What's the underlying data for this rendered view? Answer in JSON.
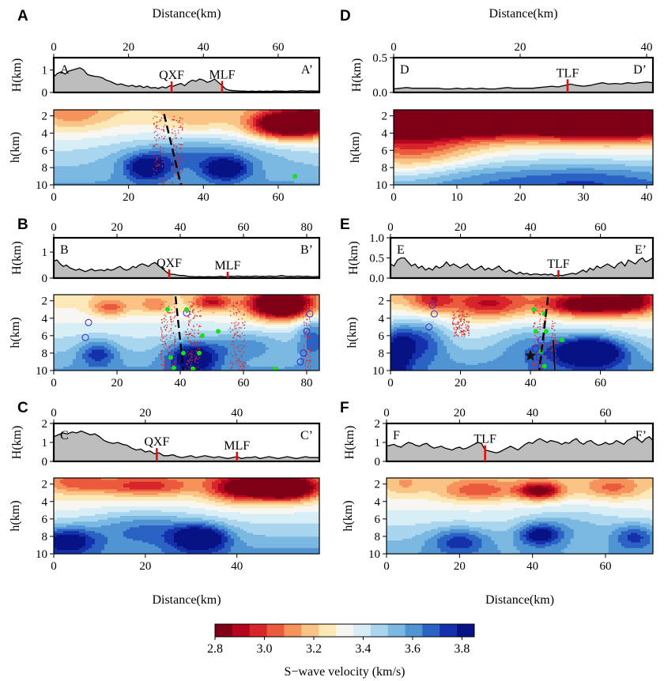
{
  "colors": {
    "scale": [
      "#7f0017",
      "#b4061e",
      "#d8242b",
      "#ec5a3d",
      "#f6925c",
      "#fbc487",
      "#fde8b8",
      "#f7f6f1",
      "#d8eef7",
      "#a9d6ee",
      "#7bb8e2",
      "#5094d4",
      "#2b63c4",
      "#1530ab",
      "#071285"
    ],
    "topo_fill": "#bdbdbd",
    "fault_mark": "#e01010",
    "quake": "#e02626",
    "event_green": "#18e018",
    "circle_blue": "#3228c8"
  },
  "labels": {
    "distance": "Distance(km)",
    "H_axis": "H(km)",
    "h_axis": "h(km)",
    "colorbar_title": "S−wave velocity (km/s)"
  },
  "colorbar": {
    "vmin": 2.8,
    "vmax": 3.85,
    "ticks": [
      "2.8",
      "3.0",
      "3.2",
      "3.4",
      "3.6",
      "3.8"
    ],
    "tick_values": [
      2.8,
      3.0,
      3.2,
      3.4,
      3.6,
      3.8
    ]
  },
  "panels": [
    {
      "letter": "A",
      "start": "A",
      "end": "A’",
      "xmax": 71,
      "top_ticks": [
        "0",
        "20",
        "40",
        "60"
      ],
      "top_tick_values": [
        0,
        20,
        40,
        60
      ],
      "bottom_ticks": [
        "0",
        "20",
        "40",
        "60"
      ],
      "bottom_tick_values": [
        0,
        20,
        40,
        60
      ],
      "H_ticks": [
        "0",
        "1"
      ],
      "H_tick_values": [
        0,
        1
      ],
      "H_max": 1.55,
      "faults": [
        {
          "name": "QXF",
          "x": 31.5
        },
        {
          "name": "MLF",
          "x": 45
        }
      ],
      "distance_top": true,
      "distance_bottom": false,
      "topo": [
        0.7,
        0.85,
        0.92,
        0.82,
        0.95,
        1.0,
        1.05,
        1.1,
        1.0,
        0.8,
        0.75,
        0.72,
        0.7,
        0.65,
        0.55,
        0.5,
        0.42,
        0.35,
        0.38,
        0.32,
        0.28,
        0.32,
        0.25,
        0.3,
        0.22,
        0.28,
        0.2,
        0.22,
        0.18,
        0.25,
        0.2,
        0.3,
        0.28,
        0.35,
        0.4,
        0.3,
        0.45,
        0.55,
        0.5,
        0.6,
        0.55,
        0.45,
        0.5,
        0.6,
        0.45,
        0.3,
        0.15,
        0.1,
        0.08,
        0.07,
        0.06,
        0.06,
        0.05,
        0.06,
        0.05,
        0.06,
        0.05,
        0.06,
        0.05,
        0.07,
        0.06,
        0.06,
        0.05,
        0.06,
        0.07,
        0.06,
        0.08,
        0.07,
        0.06,
        0.07,
        0.06,
        0.06
      ],
      "blobs": [
        [
          62,
          3,
          9,
          1.6,
          -0.75
        ],
        [
          70,
          2.5,
          6,
          2,
          -0.3
        ],
        [
          25,
          8,
          6,
          1.5,
          0.35
        ],
        [
          46,
          8.2,
          6,
          1.3,
          0.35
        ],
        [
          38,
          6.5,
          20,
          2,
          0.2
        ],
        [
          5,
          2,
          10,
          1.8,
          -0.15
        ],
        [
          38,
          2.5,
          10,
          1.5,
          -0.1
        ]
      ],
      "bg": 3.38,
      "depth_grad": 0.04,
      "dashed": [
        [
          29.5,
          1.8
        ],
        [
          34,
          10
        ]
      ],
      "quake_zones": [
        [
          28,
          1.8,
          10,
          2
        ],
        [
          33,
          2,
          10,
          2
        ]
      ],
      "greens": [
        [
          64.5,
          9
        ]
      ],
      "circles": [],
      "star": null
    },
    {
      "letter": "B",
      "start": "B",
      "end": "B’",
      "xmax": 84,
      "top_ticks": [
        "0",
        "20",
        "40",
        "60",
        "80"
      ],
      "top_tick_values": [
        0,
        20,
        40,
        60,
        80
      ],
      "bottom_ticks": [
        "0",
        "20",
        "40",
        "60",
        "80"
      ],
      "bottom_tick_values": [
        0,
        20,
        40,
        60,
        80
      ],
      "H_ticks": [
        "0",
        "1"
      ],
      "H_tick_values": [
        0,
        1
      ],
      "H_max": 1.55,
      "faults": [
        {
          "name": "QXF",
          "x": 36.5
        },
        {
          "name": "MLF",
          "x": 55
        }
      ],
      "distance_top": false,
      "distance_bottom": false,
      "topo": [
        0.65,
        0.7,
        0.55,
        0.45,
        0.5,
        0.4,
        0.35,
        0.3,
        0.35,
        0.3,
        0.25,
        0.3,
        0.35,
        0.28,
        0.3,
        0.32,
        0.28,
        0.35,
        0.3,
        0.33,
        0.4,
        0.45,
        0.35,
        0.3,
        0.35,
        0.45,
        0.4,
        0.5,
        0.55,
        0.5,
        0.45,
        0.55,
        0.6,
        0.5,
        0.4,
        0.3,
        0.2,
        0.15,
        0.15,
        0.12,
        0.1,
        0.1,
        0.08,
        0.06,
        0.06,
        0.05,
        0.06,
        0.05,
        0.05,
        0.06,
        0.05,
        0.05,
        0.06,
        0.07,
        0.05,
        0.06,
        0.07,
        0.06,
        0.08,
        0.07,
        0.06,
        0.07,
        0.06,
        0.07,
        0.08,
        0.06,
        0.07,
        0.06,
        0.08,
        0.07,
        0.06,
        0.08,
        0.1,
        0.08,
        0.06,
        0.07,
        0.06,
        0.08,
        0.07,
        0.06,
        0.07,
        0.06,
        0.05,
        0.06,
        0.06
      ],
      "blobs": [
        [
          72,
          2.5,
          10,
          1.6,
          -0.8
        ],
        [
          50,
          2.2,
          6,
          1,
          -0.35
        ],
        [
          18,
          2.8,
          6,
          1,
          -0.25
        ],
        [
          32,
          2.5,
          5,
          1,
          -0.2
        ],
        [
          44,
          8.5,
          8,
          1.8,
          0.4
        ],
        [
          14,
          8,
          6,
          1.5,
          0.25
        ],
        [
          82,
          6,
          5,
          2.5,
          0.25
        ],
        [
          60,
          7,
          12,
          1.5,
          0.15
        ]
      ],
      "bg": 3.38,
      "depth_grad": 0.04,
      "dashed": [
        [
          38.5,
          1.5
        ],
        [
          41,
          10
        ]
      ],
      "quake_zones": [
        [
          36,
          2,
          10,
          3
        ],
        [
          44,
          2,
          10,
          3
        ],
        [
          58,
          2,
          10,
          3
        ],
        [
          80,
          2,
          10,
          1.5
        ]
      ],
      "greens": [
        [
          36,
          3
        ],
        [
          42,
          3
        ],
        [
          37,
          8.5
        ],
        [
          38,
          9.7
        ],
        [
          41,
          8
        ],
        [
          44,
          9.8
        ],
        [
          46,
          8
        ],
        [
          47,
          6
        ],
        [
          52,
          5.5
        ],
        [
          70,
          9.8
        ]
      ],
      "circles": [
        [
          10,
          6.2
        ],
        [
          11,
          4.5
        ],
        [
          42,
          3.4
        ],
        [
          80,
          5.5
        ],
        [
          79,
          8
        ],
        [
          78,
          9
        ],
        [
          81,
          3.5
        ]
      ],
      "star": null
    },
    {
      "letter": "C",
      "start": "C",
      "end": "C’",
      "xmax": 58,
      "top_ticks": [
        "0",
        "20",
        "40"
      ],
      "top_tick_values": [
        0,
        20,
        40
      ],
      "bottom_ticks": [
        "0",
        "20",
        "40"
      ],
      "bottom_tick_values": [
        0,
        20,
        40
      ],
      "H_ticks": [
        "0",
        "1",
        "2"
      ],
      "H_tick_values": [
        0,
        1,
        2
      ],
      "H_max": 2,
      "faults": [
        {
          "name": "QXF",
          "x": 22.5
        },
        {
          "name": "MLF",
          "x": 40
        }
      ],
      "distance_top": false,
      "distance_bottom": true,
      "topo": [
        1.3,
        1.4,
        1.5,
        1.45,
        1.55,
        1.5,
        1.6,
        1.5,
        1.4,
        1.45,
        1.3,
        1.1,
        1.0,
        0.95,
        1.0,
        0.9,
        0.85,
        0.7,
        0.6,
        0.65,
        0.5,
        0.55,
        0.4,
        0.45,
        0.3,
        0.3,
        0.35,
        0.25,
        0.2,
        0.25,
        0.3,
        0.2,
        0.25,
        0.3,
        0.25,
        0.2,
        0.25,
        0.2,
        0.15,
        0.2,
        0.25,
        0.15,
        0.2,
        0.2,
        0.25,
        0.15,
        0.2,
        0.25,
        0.2,
        0.15,
        0.2,
        0.25,
        0.2,
        0.15,
        0.2,
        0.25,
        0.2,
        0.2,
        0.2
      ],
      "blobs": [
        [
          50,
          2.5,
          7,
          1.3,
          -0.8
        ],
        [
          40,
          2.5,
          6,
          1.5,
          -0.4
        ],
        [
          20,
          2.3,
          10,
          1,
          -0.25
        ],
        [
          5,
          2,
          6,
          1,
          -0.15
        ],
        [
          32,
          8.2,
          6,
          1.5,
          0.45
        ],
        [
          3,
          8.5,
          6,
          1.5,
          0.35
        ],
        [
          20,
          7,
          12,
          2,
          0.2
        ]
      ],
      "bg": 3.35,
      "depth_grad": 0.05,
      "dashed": null,
      "quake_zones": [],
      "greens": [],
      "circles": [],
      "star": null
    },
    {
      "letter": "D",
      "start": "D",
      "end": "D’",
      "xmax": 41,
      "top_ticks": [
        "0",
        "20",
        "40"
      ],
      "top_tick_values": [
        0,
        20,
        40
      ],
      "bottom_ticks": [
        "0",
        "10",
        "20",
        "30",
        "40"
      ],
      "bottom_tick_values": [
        0,
        10,
        20,
        30,
        40
      ],
      "H_ticks": [
        "0.0",
        "0.5"
      ],
      "H_tick_values": [
        0,
        0.5
      ],
      "H_max": 0.5,
      "faults": [
        {
          "name": "TLF",
          "x": 27.5
        }
      ],
      "distance_top": true,
      "distance_bottom": false,
      "topo": [
        0.05,
        0.06,
        0.07,
        0.06,
        0.06,
        0.06,
        0.06,
        0.06,
        0.05,
        0.05,
        0.06,
        0.05,
        0.06,
        0.05,
        0.06,
        0.05,
        0.05,
        0.06,
        0.07,
        0.06,
        0.06,
        0.06,
        0.06,
        0.07,
        0.08,
        0.09,
        0.08,
        0.1,
        0.12,
        0.1,
        0.09,
        0.1,
        0.12,
        0.14,
        0.12,
        0.13,
        0.12,
        0.14,
        0.13,
        0.14,
        0.15,
        0.14
      ],
      "blobs": [
        [
          18,
          2,
          40,
          2.2,
          -1.0
        ],
        [
          35,
          2,
          10,
          2.5,
          -0.35
        ],
        [
          3,
          6,
          10,
          3,
          -0.3
        ],
        [
          30,
          9.5,
          15,
          2,
          0.18
        ],
        [
          10,
          9,
          10,
          2,
          0.08
        ]
      ],
      "bg": 3.3,
      "depth_grad": 0.05,
      "dashed": null,
      "quake_zones": [],
      "greens": [],
      "circles": [],
      "star": null
    },
    {
      "letter": "E",
      "start": "E",
      "end": "E’",
      "xmax": 75,
      "top_ticks": [
        "0",
        "20",
        "40",
        "60"
      ],
      "top_tick_values": [
        0,
        20,
        40,
        60
      ],
      "bottom_ticks": [
        "0",
        "20",
        "40",
        "60"
      ],
      "bottom_tick_values": [
        0,
        20,
        40,
        60
      ],
      "H_ticks": [
        "0.0",
        "0.5",
        "1.0"
      ],
      "H_tick_values": [
        0,
        0.5,
        1
      ],
      "H_max": 1.0,
      "faults": [
        {
          "name": "TLF",
          "x": 48
        }
      ],
      "distance_top": false,
      "distance_bottom": false,
      "topo": [
        0.35,
        0.3,
        0.45,
        0.5,
        0.5,
        0.4,
        0.3,
        0.35,
        0.25,
        0.3,
        0.2,
        0.25,
        0.2,
        0.3,
        0.25,
        0.3,
        0.4,
        0.3,
        0.35,
        0.3,
        0.25,
        0.3,
        0.35,
        0.25,
        0.2,
        0.25,
        0.3,
        0.2,
        0.25,
        0.2,
        0.25,
        0.3,
        0.2,
        0.15,
        0.2,
        0.15,
        0.1,
        0.15,
        0.1,
        0.12,
        0.08,
        0.1,
        0.1,
        0.08,
        0.1,
        0.08,
        0.1,
        0.05,
        0.08,
        0.06,
        0.08,
        0.1,
        0.12,
        0.1,
        0.15,
        0.2,
        0.15,
        0.25,
        0.2,
        0.3,
        0.25,
        0.3,
        0.35,
        0.3,
        0.25,
        0.35,
        0.4,
        0.3,
        0.45,
        0.4,
        0.35,
        0.45,
        0.5,
        0.4,
        0.45,
        0.5
      ],
      "blobs": [
        [
          57,
          2.5,
          12,
          1.2,
          -0.55
        ],
        [
          28,
          2.5,
          10,
          1.5,
          -0.3
        ],
        [
          12,
          2,
          6,
          1.3,
          -0.25
        ],
        [
          70,
          2,
          6,
          1.5,
          -0.3
        ],
        [
          8,
          6.5,
          8,
          2.5,
          0.3
        ],
        [
          57,
          7.8,
          10,
          1.8,
          0.55
        ],
        [
          40,
          7,
          10,
          2.5,
          0.15
        ],
        [
          2,
          8,
          4,
          3,
          0.3
        ]
      ],
      "bg": 3.35,
      "depth_grad": 0.05,
      "dashed": [
        [
          45,
          1.6
        ],
        [
          42.5,
          10
        ]
      ],
      "solid": [
        [
          46.5,
          6.5
        ],
        [
          47,
          10
        ]
      ],
      "quake_zones": [
        [
          42.5,
          2,
          10,
          2.5
        ],
        [
          46.5,
          4,
          10,
          1
        ],
        [
          20,
          3,
          6,
          3
        ]
      ],
      "greens": [
        [
          41,
          3
        ],
        [
          44,
          3.5
        ],
        [
          41.5,
          5.5
        ],
        [
          44.5,
          5.5
        ],
        [
          49,
          6.5
        ],
        [
          43,
          7.8
        ],
        [
          44,
          9.5
        ]
      ],
      "circles": [
        [
          12,
          2.5
        ],
        [
          12.5,
          3.5
        ],
        [
          11,
          5
        ],
        [
          43,
          6.5
        ],
        [
          42.5,
          8.5
        ],
        [
          43,
          9.5
        ],
        [
          41.5,
          7.5
        ]
      ],
      "star": [
        40,
        8.3
      ]
    },
    {
      "letter": "F",
      "start": "F",
      "end": "F’",
      "xmax": 73,
      "top_ticks": [
        "0",
        "20",
        "40",
        "60"
      ],
      "top_tick_values": [
        0,
        20,
        40,
        60
      ],
      "bottom_ticks": [
        "0",
        "20",
        "40",
        "60"
      ],
      "bottom_tick_values": [
        0,
        20,
        40,
        60
      ],
      "H_ticks": [
        "0",
        "1",
        "2"
      ],
      "H_tick_values": [
        0,
        1,
        2
      ],
      "H_max": 2,
      "faults": [
        {
          "name": "TLF",
          "x": 27
        }
      ],
      "distance_top": false,
      "distance_bottom": true,
      "topo": [
        0.8,
        0.85,
        0.9,
        0.8,
        0.75,
        0.9,
        1.0,
        0.95,
        0.85,
        0.8,
        0.9,
        0.95,
        0.8,
        0.7,
        0.75,
        0.8,
        0.7,
        0.65,
        0.6,
        0.7,
        0.75,
        0.65,
        0.7,
        0.8,
        0.9,
        1.0,
        0.95,
        0.6,
        0.55,
        0.5,
        0.45,
        0.5,
        0.6,
        0.7,
        0.8,
        0.7,
        0.6,
        0.75,
        0.9,
        1.0,
        0.95,
        1.1,
        1.2,
        1.1,
        1.0,
        1.1,
        1.05,
        1.0,
        0.9,
        1.0,
        0.95,
        1.1,
        1.2,
        1.0,
        0.9,
        1.05,
        1.1,
        0.95,
        0.85,
        0.9,
        1.0,
        0.9,
        0.95,
        1.1,
        1.0,
        0.9,
        1.1,
        1.2,
        1.3,
        1.15,
        1.0,
        1.2,
        1.3,
        1.1
      ],
      "blobs": [
        [
          42,
          2.8,
          6,
          1,
          -0.5
        ],
        [
          25,
          2.8,
          10,
          1.2,
          -0.25
        ],
        [
          62,
          2.5,
          8,
          1.2,
          -0.2
        ],
        [
          5,
          2.2,
          5,
          1.2,
          -0.1
        ],
        [
          42,
          7.8,
          6,
          1.3,
          0.35
        ],
        [
          20,
          8.5,
          8,
          1.5,
          0.25
        ],
        [
          68,
          8,
          6,
          1.5,
          0.25
        ],
        [
          50,
          6.5,
          12,
          2,
          0.1
        ]
      ],
      "bg": 3.36,
      "depth_grad": 0.04,
      "dashed": null,
      "quake_zones": [],
      "greens": [],
      "circles": [],
      "star": null
    }
  ]
}
